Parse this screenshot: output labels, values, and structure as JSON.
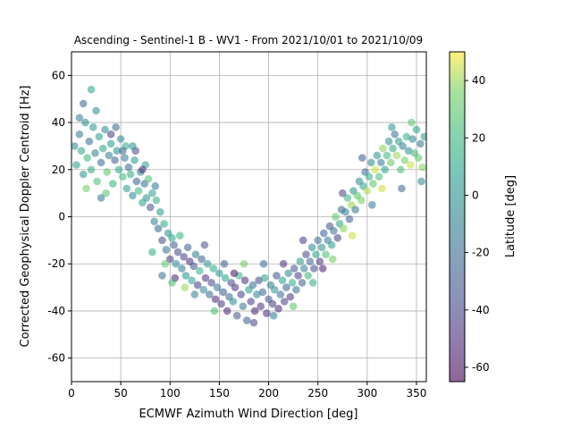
{
  "chart_data": {
    "type": "scatter",
    "title": "Ascending - Sentinel-1 B - WV1 - From 2021/10/01 to 2021/10/09",
    "xlabel": "ECMWF Azimuth Wind Direction [deg]",
    "ylabel": "Corrected Geophysical Doppler Centroid [Hz]",
    "xlim": [
      0,
      360
    ],
    "ylim": [
      -70,
      70
    ],
    "xticks": [
      0,
      50,
      100,
      150,
      200,
      250,
      300,
      350
    ],
    "yticks": [
      -60,
      -40,
      -20,
      0,
      20,
      40,
      60
    ],
    "grid": true,
    "colorbar": {
      "label": "Latitude [deg]",
      "range": [
        -65,
        50
      ],
      "ticks": [
        -60,
        -40,
        -20,
        0,
        20,
        40
      ],
      "colormap": "viridis"
    },
    "points": [
      [
        3,
        30,
        -8
      ],
      [
        5,
        22,
        5
      ],
      [
        8,
        35,
        -15
      ],
      [
        10,
        28,
        10
      ],
      [
        12,
        18,
        0
      ],
      [
        14,
        40,
        -5
      ],
      [
        16,
        25,
        20
      ],
      [
        18,
        32,
        -20
      ],
      [
        20,
        20,
        15
      ],
      [
        22,
        38,
        2
      ],
      [
        24,
        27,
        -10
      ],
      [
        26,
        15,
        25
      ],
      [
        28,
        34,
        8
      ],
      [
        30,
        23,
        -25
      ],
      [
        32,
        29,
        12
      ],
      [
        34,
        37,
        -3
      ],
      [
        36,
        19,
        30
      ],
      [
        38,
        26,
        -12
      ],
      [
        40,
        31,
        5
      ],
      [
        42,
        14,
        18
      ],
      [
        44,
        24,
        -30
      ],
      [
        46,
        28,
        0
      ],
      [
        48,
        20,
        10
      ],
      [
        50,
        33,
        -6
      ],
      [
        52,
        17,
        22
      ],
      [
        54,
        25,
        -15
      ],
      [
        56,
        12,
        6
      ],
      [
        58,
        21,
        -20
      ],
      [
        60,
        18,
        14
      ],
      [
        62,
        9,
        -8
      ],
      [
        64,
        24,
        3
      ],
      [
        66,
        15,
        -28
      ],
      [
        68,
        11,
        20
      ],
      [
        70,
        19,
        -5
      ],
      [
        72,
        6,
        10
      ],
      [
        74,
        14,
        -18
      ],
      [
        76,
        8,
        2
      ],
      [
        78,
        16,
        25
      ],
      [
        80,
        4,
        -35
      ],
      [
        82,
        10,
        8
      ],
      [
        84,
        -2,
        -10
      ],
      [
        86,
        7,
        15
      ],
      [
        88,
        -5,
        -25
      ],
      [
        90,
        2,
        5
      ],
      [
        92,
        -10,
        -40
      ],
      [
        94,
        -3,
        12
      ],
      [
        96,
        -14,
        -20
      ],
      [
        98,
        -7,
        0
      ],
      [
        100,
        -18,
        -45
      ],
      [
        102,
        -9,
        10
      ],
      [
        104,
        -12,
        -30
      ],
      [
        106,
        -20,
        -5
      ],
      [
        108,
        -15,
        -38
      ],
      [
        110,
        -8,
        20
      ],
      [
        112,
        -22,
        -15
      ],
      [
        114,
        -17,
        -42
      ],
      [
        116,
        -25,
        0
      ],
      [
        118,
        -13,
        -28
      ],
      [
        120,
        -19,
        -50
      ],
      [
        122,
        -27,
        8
      ],
      [
        124,
        -21,
        -35
      ],
      [
        126,
        -16,
        -12
      ],
      [
        128,
        -29,
        -45
      ],
      [
        130,
        -23,
        15
      ],
      [
        132,
        -18,
        -30
      ],
      [
        134,
        -31,
        -8
      ],
      [
        136,
        -26,
        -48
      ],
      [
        138,
        -20,
        5
      ],
      [
        140,
        -33,
        -25
      ],
      [
        142,
        -28,
        -40
      ],
      [
        144,
        -22,
        12
      ],
      [
        146,
        -35,
        -52
      ],
      [
        148,
        -30,
        -18
      ],
      [
        150,
        -24,
        0
      ],
      [
        152,
        -37,
        -44
      ],
      [
        154,
        -32,
        -30
      ],
      [
        156,
        -26,
        10
      ],
      [
        158,
        -40,
        -55
      ],
      [
        160,
        -34,
        -22
      ],
      [
        162,
        -28,
        -38
      ],
      [
        164,
        -36,
        -5
      ],
      [
        166,
        -30,
        -48
      ],
      [
        168,
        -42,
        -35
      ],
      [
        170,
        -25,
        18
      ],
      [
        172,
        -33,
        -42
      ],
      [
        174,
        -38,
        -15
      ],
      [
        176,
        -27,
        -50
      ],
      [
        178,
        -44,
        -30
      ],
      [
        180,
        -31,
        5
      ],
      [
        182,
        -36,
        -45
      ],
      [
        184,
        -29,
        -20
      ],
      [
        186,
        -40,
        -55
      ],
      [
        188,
        -33,
        -10
      ],
      [
        190,
        -27,
        -38
      ],
      [
        192,
        -38,
        -48
      ],
      [
        194,
        -32,
        -25
      ],
      [
        196,
        -26,
        10
      ],
      [
        198,
        -41,
        -50
      ],
      [
        200,
        -35,
        -32
      ],
      [
        202,
        -29,
        -12
      ],
      [
        204,
        -37,
        -45
      ],
      [
        206,
        -31,
        0
      ],
      [
        208,
        -25,
        -35
      ],
      [
        210,
        -39,
        -52
      ],
      [
        212,
        -33,
        -20
      ],
      [
        214,
        -27,
        8
      ],
      [
        216,
        -36,
        -42
      ],
      [
        218,
        -30,
        -28
      ],
      [
        220,
        -24,
        -5
      ],
      [
        222,
        -34,
        -48
      ],
      [
        224,
        -28,
        15
      ],
      [
        226,
        -22,
        -35
      ],
      [
        228,
        -31,
        -20
      ],
      [
        230,
        -25,
        -45
      ],
      [
        232,
        -19,
        5
      ],
      [
        234,
        -28,
        -30
      ],
      [
        236,
        -22,
        -12
      ],
      [
        238,
        -16,
        -40
      ],
      [
        240,
        -25,
        20
      ],
      [
        242,
        -19,
        -25
      ],
      [
        244,
        -13,
        -8
      ],
      [
        246,
        -22,
        -38
      ],
      [
        248,
        -16,
        10
      ],
      [
        250,
        -10,
        -22
      ],
      [
        252,
        -19,
        -45
      ],
      [
        254,
        -13,
        0
      ],
      [
        256,
        -7,
        -30
      ],
      [
        258,
        -16,
        25
      ],
      [
        260,
        -10,
        -15
      ],
      [
        262,
        -4,
        -35
      ],
      [
        264,
        -12,
        5
      ],
      [
        266,
        -6,
        -20
      ],
      [
        268,
        0,
        30
      ],
      [
        270,
        -9,
        -42
      ],
      [
        272,
        -3,
        12
      ],
      [
        274,
        3,
        -25
      ],
      [
        276,
        -5,
        38
      ],
      [
        278,
        2,
        -10
      ],
      [
        280,
        8,
        20
      ],
      [
        282,
        -1,
        -30
      ],
      [
        284,
        5,
        40
      ],
      [
        286,
        11,
        0
      ],
      [
        288,
        3,
        -18
      ],
      [
        290,
        9,
        28
      ],
      [
        292,
        15,
        -5
      ],
      [
        294,
        7,
        35
      ],
      [
        296,
        13,
        10
      ],
      [
        298,
        19,
        -22
      ],
      [
        300,
        11,
        42
      ],
      [
        302,
        17,
        15
      ],
      [
        304,
        23,
        -8
      ],
      [
        306,
        14,
        30
      ],
      [
        308,
        20,
        45
      ],
      [
        310,
        26,
        0
      ],
      [
        312,
        17,
        25
      ],
      [
        314,
        23,
        -12
      ],
      [
        316,
        29,
        38
      ],
      [
        318,
        20,
        8
      ],
      [
        320,
        26,
        20
      ],
      [
        322,
        32,
        -5
      ],
      [
        324,
        23,
        32
      ],
      [
        326,
        29,
        12
      ],
      [
        328,
        35,
        -18
      ],
      [
        330,
        26,
        40
      ],
      [
        332,
        32,
        5
      ],
      [
        334,
        20,
        25
      ],
      [
        336,
        30,
        -10
      ],
      [
        338,
        24,
        35
      ],
      [
        340,
        34,
        15
      ],
      [
        342,
        28,
        0
      ],
      [
        344,
        22,
        45
      ],
      [
        346,
        33,
        -8
      ],
      [
        348,
        27,
        22
      ],
      [
        350,
        37,
        10
      ],
      [
        352,
        25,
        30
      ],
      [
        354,
        31,
        -15
      ],
      [
        356,
        21,
        38
      ],
      [
        358,
        34,
        5
      ],
      [
        8,
        42,
        -12
      ],
      [
        15,
        12,
        35
      ],
      [
        25,
        45,
        -3
      ],
      [
        35,
        10,
        28
      ],
      [
        45,
        38,
        -22
      ],
      [
        55,
        30,
        15
      ],
      [
        65,
        28,
        -40
      ],
      [
        75,
        22,
        8
      ],
      [
        85,
        13,
        -18
      ],
      [
        95,
        -20,
        30
      ],
      [
        105,
        -26,
        -55
      ],
      [
        115,
        -30,
        40
      ],
      [
        125,
        -33,
        -10
      ],
      [
        135,
        -12,
        -35
      ],
      [
        145,
        -40,
        25
      ],
      [
        155,
        -20,
        -30
      ],
      [
        165,
        -24,
        -60
      ],
      [
        175,
        -20,
        35
      ],
      [
        185,
        -45,
        -40
      ],
      [
        195,
        -20,
        -22
      ],
      [
        205,
        -42,
        -15
      ],
      [
        215,
        -20,
        -50
      ],
      [
        225,
        -38,
        30
      ],
      [
        235,
        -10,
        -45
      ],
      [
        245,
        -28,
        15
      ],
      [
        255,
        -22,
        -55
      ],
      [
        265,
        -18,
        35
      ],
      [
        275,
        10,
        -40
      ],
      [
        285,
        -8,
        45
      ],
      [
        295,
        25,
        -30
      ],
      [
        305,
        5,
        -15
      ],
      [
        315,
        12,
        45
      ],
      [
        325,
        38,
        0
      ],
      [
        335,
        12,
        -25
      ],
      [
        345,
        40,
        30
      ],
      [
        355,
        15,
        -5
      ],
      [
        12,
        48,
        -25
      ],
      [
        20,
        54,
        10
      ],
      [
        30,
        8,
        -15
      ],
      [
        40,
        35,
        -45
      ],
      [
        52,
        28,
        -28
      ],
      [
        62,
        30,
        -2
      ],
      [
        72,
        20,
        -50
      ],
      [
        82,
        -15,
        15
      ],
      [
        92,
        -25,
        -20
      ],
      [
        102,
        -28,
        25
      ]
    ]
  }
}
